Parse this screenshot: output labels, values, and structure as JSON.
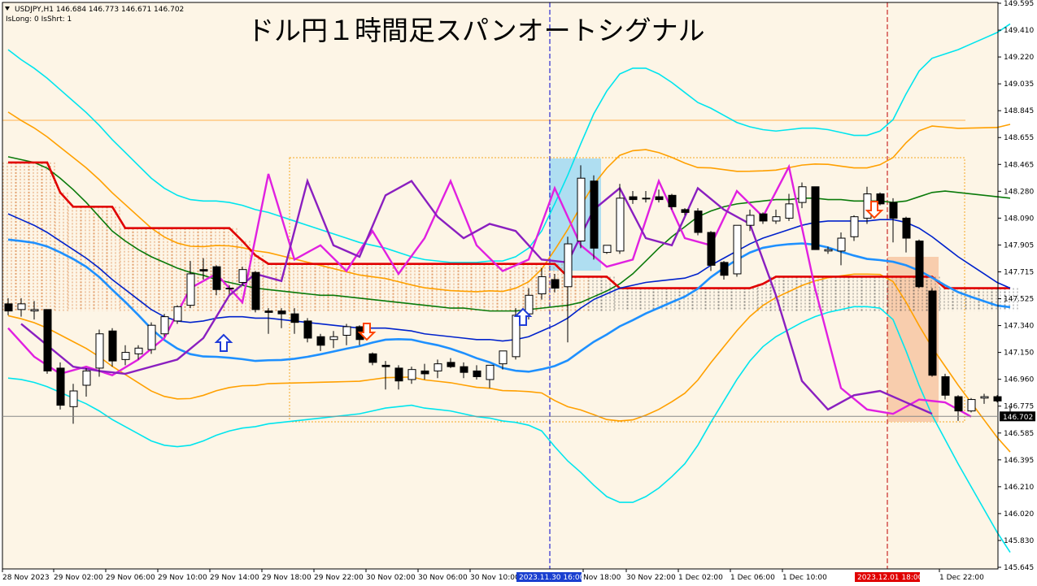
{
  "header": {
    "symbol_line": "USDJPY,H1  146.684 146.773 146.671 146.702",
    "param_line": "IsLong: 0 IsShrt: 1"
  },
  "chart_data": {
    "type": "candlestick",
    "title": "ドル円１時間足スパンオートシグナル",
    "price_axis_ticks": [
      "149.595",
      "149.410",
      "149.220",
      "149.035",
      "148.845",
      "148.655",
      "148.465",
      "148.280",
      "148.090",
      "147.905",
      "147.715",
      "147.525",
      "147.340",
      "147.150",
      "146.960",
      "146.775",
      "146.585",
      "146.395",
      "146.210",
      "146.020",
      "145.830",
      "145.645"
    ],
    "time_axis_ticks": [
      "28 Nov 2023",
      "29 Nov 02:00",
      "29 Nov 06:00",
      "29 Nov 10:00",
      "29 Nov 14:00",
      "29 Nov 18:00",
      "29 Nov 22:00",
      "30 Nov 02:00",
      "30 Nov 06:00",
      "30 Nov 10:00",
      "Nov 18:00",
      "30 Nov 22:00",
      "1 Dec 02:00",
      "1 Dec 06:00",
      "1 Dec 10:00",
      "1 Dec 22:00"
    ],
    "current_price": "146.702",
    "highlighted_times": [
      "2023.11.30 16:00",
      "2023.12.01 18:00"
    ],
    "candles": [
      {
        "o": 147.49,
        "h": 147.53,
        "l": 147.41,
        "c": 147.44
      },
      {
        "o": 147.45,
        "h": 147.53,
        "l": 147.4,
        "c": 147.49
      },
      {
        "o": 147.44,
        "h": 147.51,
        "l": 147.38,
        "c": 147.45
      },
      {
        "o": 147.45,
        "h": 147.45,
        "l": 147.0,
        "c": 147.02
      },
      {
        "o": 147.04,
        "h": 147.08,
        "l": 146.75,
        "c": 146.78
      },
      {
        "o": 146.77,
        "h": 146.93,
        "l": 146.65,
        "c": 146.88
      },
      {
        "o": 146.92,
        "h": 147.04,
        "l": 146.84,
        "c": 147.02
      },
      {
        "o": 147.04,
        "h": 147.31,
        "l": 146.98,
        "c": 147.28
      },
      {
        "o": 147.3,
        "h": 147.32,
        "l": 147.05,
        "c": 147.09
      },
      {
        "o": 147.1,
        "h": 147.2,
        "l": 147.06,
        "c": 147.15
      },
      {
        "o": 147.14,
        "h": 147.2,
        "l": 147.1,
        "c": 147.18
      },
      {
        "o": 147.17,
        "h": 147.36,
        "l": 147.14,
        "c": 147.34
      },
      {
        "o": 147.28,
        "h": 147.42,
        "l": 147.26,
        "c": 147.4
      },
      {
        "o": 147.37,
        "h": 147.48,
        "l": 147.35,
        "c": 147.47
      },
      {
        "o": 147.48,
        "h": 147.79,
        "l": 147.46,
        "c": 147.7
      },
      {
        "o": 147.73,
        "h": 147.81,
        "l": 147.66,
        "c": 147.72
      },
      {
        "o": 147.75,
        "h": 147.76,
        "l": 147.55,
        "c": 147.59
      },
      {
        "o": 147.6,
        "h": 147.62,
        "l": 147.56,
        "c": 147.6
      },
      {
        "o": 147.64,
        "h": 147.75,
        "l": 147.62,
        "c": 147.73
      },
      {
        "o": 147.71,
        "h": 147.72,
        "l": 147.43,
        "c": 147.45
      },
      {
        "o": 147.44,
        "h": 147.46,
        "l": 147.28,
        "c": 147.43
      },
      {
        "o": 147.44,
        "h": 147.46,
        "l": 147.32,
        "c": 147.42
      },
      {
        "o": 147.42,
        "h": 147.46,
        "l": 147.28,
        "c": 147.36
      },
      {
        "o": 147.37,
        "h": 147.39,
        "l": 147.22,
        "c": 147.25
      },
      {
        "o": 147.26,
        "h": 147.28,
        "l": 147.16,
        "c": 147.2
      },
      {
        "o": 147.24,
        "h": 147.3,
        "l": 147.18,
        "c": 147.26
      },
      {
        "o": 147.27,
        "h": 147.35,
        "l": 147.2,
        "c": 147.33
      },
      {
        "o": 147.33,
        "h": 147.34,
        "l": 147.2,
        "c": 147.24
      },
      {
        "o": 147.14,
        "h": 147.15,
        "l": 147.06,
        "c": 147.08
      },
      {
        "o": 147.06,
        "h": 147.09,
        "l": 146.89,
        "c": 147.05
      },
      {
        "o": 147.04,
        "h": 147.06,
        "l": 146.89,
        "c": 146.95
      },
      {
        "o": 146.96,
        "h": 147.05,
        "l": 146.93,
        "c": 147.03
      },
      {
        "o": 147.02,
        "h": 147.07,
        "l": 146.96,
        "c": 147.0
      },
      {
        "o": 147.02,
        "h": 147.1,
        "l": 146.97,
        "c": 147.07
      },
      {
        "o": 147.08,
        "h": 147.11,
        "l": 147.04,
        "c": 147.05
      },
      {
        "o": 147.05,
        "h": 147.08,
        "l": 146.97,
        "c": 147.01
      },
      {
        "o": 147.02,
        "h": 147.06,
        "l": 146.96,
        "c": 146.98
      },
      {
        "o": 146.96,
        "h": 147.06,
        "l": 146.9,
        "c": 147.06
      },
      {
        "o": 147.07,
        "h": 147.16,
        "l": 147.03,
        "c": 147.16
      },
      {
        "o": 147.12,
        "h": 147.46,
        "l": 147.1,
        "c": 147.41
      },
      {
        "o": 147.42,
        "h": 147.6,
        "l": 147.38,
        "c": 147.55
      },
      {
        "o": 147.56,
        "h": 147.74,
        "l": 147.52,
        "c": 147.68
      },
      {
        "o": 147.66,
        "h": 147.7,
        "l": 147.57,
        "c": 147.6
      },
      {
        "o": 147.61,
        "h": 147.96,
        "l": 147.22,
        "c": 147.91
      },
      {
        "o": 147.93,
        "h": 148.46,
        "l": 147.88,
        "c": 148.37
      },
      {
        "o": 148.35,
        "h": 148.39,
        "l": 147.8,
        "c": 147.88
      },
      {
        "o": 147.85,
        "h": 147.9,
        "l": 147.84,
        "c": 147.9
      },
      {
        "o": 147.86,
        "h": 148.33,
        "l": 147.84,
        "c": 148.23
      },
      {
        "o": 148.24,
        "h": 148.28,
        "l": 148.19,
        "c": 148.22
      },
      {
        "o": 148.23,
        "h": 148.28,
        "l": 148.2,
        "c": 148.23
      },
      {
        "o": 148.24,
        "h": 148.29,
        "l": 148.2,
        "c": 148.22
      },
      {
        "o": 148.25,
        "h": 148.26,
        "l": 148.15,
        "c": 148.17
      },
      {
        "o": 148.15,
        "h": 148.16,
        "l": 148.11,
        "c": 148.13
      },
      {
        "o": 148.14,
        "h": 148.16,
        "l": 147.97,
        "c": 147.99
      },
      {
        "o": 147.99,
        "h": 148.0,
        "l": 147.72,
        "c": 147.76
      },
      {
        "o": 147.78,
        "h": 147.79,
        "l": 147.66,
        "c": 147.69
      },
      {
        "o": 147.7,
        "h": 148.04,
        "l": 147.68,
        "c": 148.04
      },
      {
        "o": 148.04,
        "h": 148.15,
        "l": 148.0,
        "c": 148.11
      },
      {
        "o": 148.12,
        "h": 148.13,
        "l": 148.05,
        "c": 148.07
      },
      {
        "o": 148.07,
        "h": 148.15,
        "l": 148.05,
        "c": 148.1
      },
      {
        "o": 148.09,
        "h": 148.26,
        "l": 148.07,
        "c": 148.19
      },
      {
        "o": 148.2,
        "h": 148.34,
        "l": 148.16,
        "c": 148.31
      },
      {
        "o": 148.31,
        "h": 148.31,
        "l": 147.87,
        "c": 147.87
      },
      {
        "o": 147.86,
        "h": 147.89,
        "l": 147.84,
        "c": 147.87
      },
      {
        "o": 147.86,
        "h": 147.99,
        "l": 147.76,
        "c": 147.95
      },
      {
        "o": 147.96,
        "h": 148.11,
        "l": 147.93,
        "c": 148.1
      },
      {
        "o": 148.09,
        "h": 148.31,
        "l": 148.05,
        "c": 148.26
      },
      {
        "o": 148.26,
        "h": 148.27,
        "l": 148.18,
        "c": 148.19
      },
      {
        "o": 148.2,
        "h": 148.23,
        "l": 147.92,
        "c": 148.09
      },
      {
        "o": 148.09,
        "h": 148.1,
        "l": 147.85,
        "c": 147.95
      },
      {
        "o": 147.93,
        "h": 147.94,
        "l": 147.6,
        "c": 147.61
      },
      {
        "o": 147.58,
        "h": 147.6,
        "l": 146.98,
        "c": 146.99
      },
      {
        "o": 146.98,
        "h": 147.0,
        "l": 146.82,
        "c": 146.85
      },
      {
        "o": 146.84,
        "h": 146.85,
        "l": 146.67,
        "c": 146.74
      },
      {
        "o": 146.74,
        "h": 146.83,
        "l": 146.73,
        "c": 146.82
      },
      {
        "o": 146.83,
        "h": 146.86,
        "l": 146.79,
        "c": 146.84
      },
      {
        "o": 146.84,
        "h": 146.85,
        "l": 146.8,
        "c": 146.81
      },
      {
        "o": 146.68,
        "h": 146.77,
        "l": 146.67,
        "c": 146.7
      }
    ],
    "lines": {
      "red": [
        148.48,
        148.48,
        148.48,
        148.48,
        148.27,
        148.17,
        148.17,
        148.17,
        148.17,
        148.02,
        148.02,
        148.02,
        148.02,
        148.02,
        148.02,
        148.02,
        148.02,
        148.02,
        147.93,
        147.83,
        147.77,
        147.77,
        147.77,
        147.77,
        147.77,
        147.77,
        147.77,
        147.77,
        147.77,
        147.77,
        147.77,
        147.77,
        147.77,
        147.77,
        147.77,
        147.77,
        147.77,
        147.77,
        147.77,
        147.77,
        147.77,
        147.77,
        147.77,
        147.68,
        147.68,
        147.68,
        147.68,
        147.6,
        147.6,
        147.6,
        147.6,
        147.6,
        147.6,
        147.6,
        147.6,
        147.6,
        147.6,
        147.6,
        147.63,
        147.68,
        147.68,
        147.68,
        147.68,
        147.68,
        147.68,
        147.68,
        147.68,
        147.68,
        147.68,
        147.68,
        147.68,
        147.68,
        147.6,
        147.6,
        147.6,
        147.6,
        147.6,
        147.6
      ],
      "green": [
        148.52,
        148.5,
        148.48,
        148.44,
        148.37,
        148.29,
        148.2,
        148.1,
        148.0,
        147.93,
        147.87,
        147.82,
        147.78,
        147.74,
        147.71,
        147.69,
        147.66,
        147.64,
        147.62,
        147.6,
        147.59,
        147.58,
        147.57,
        147.56,
        147.55,
        147.55,
        147.54,
        147.53,
        147.52,
        147.51,
        147.5,
        147.49,
        147.48,
        147.47,
        147.46,
        147.46,
        147.45,
        147.44,
        147.44,
        147.44,
        147.45,
        147.46,
        147.47,
        147.48,
        147.5,
        147.54,
        147.58,
        147.63,
        147.7,
        147.79,
        147.88,
        147.96,
        148.03,
        148.1,
        148.14,
        148.17,
        148.19,
        148.2,
        148.21,
        148.22,
        148.22,
        148.23,
        148.23,
        148.22,
        148.22,
        148.21,
        148.21,
        148.21,
        148.2,
        148.21,
        148.24,
        148.27,
        148.28,
        148.27,
        148.26,
        148.25,
        148.24,
        148.23
      ],
      "blue": [
        148.12,
        148.08,
        148.04,
        147.99,
        147.93,
        147.87,
        147.81,
        147.74,
        147.66,
        147.59,
        147.52,
        147.45,
        147.4,
        147.37,
        147.36,
        147.37,
        147.39,
        147.4,
        147.4,
        147.39,
        147.39,
        147.38,
        147.37,
        147.36,
        147.35,
        147.34,
        147.33,
        147.32,
        147.32,
        147.32,
        147.31,
        147.3,
        147.28,
        147.27,
        147.26,
        147.25,
        147.24,
        147.24,
        147.23,
        147.24,
        147.26,
        147.3,
        147.34,
        147.39,
        147.46,
        147.52,
        147.56,
        147.6,
        147.62,
        147.64,
        147.65,
        147.66,
        147.67,
        147.7,
        147.76,
        147.81,
        147.86,
        147.91,
        147.95,
        147.98,
        148.01,
        148.04,
        148.06,
        148.07,
        148.07,
        148.07,
        148.07,
        148.08,
        148.08,
        148.06,
        148.02,
        147.96,
        147.89,
        147.82,
        147.76,
        147.7,
        147.64,
        147.6
      ]
    }
  }
}
